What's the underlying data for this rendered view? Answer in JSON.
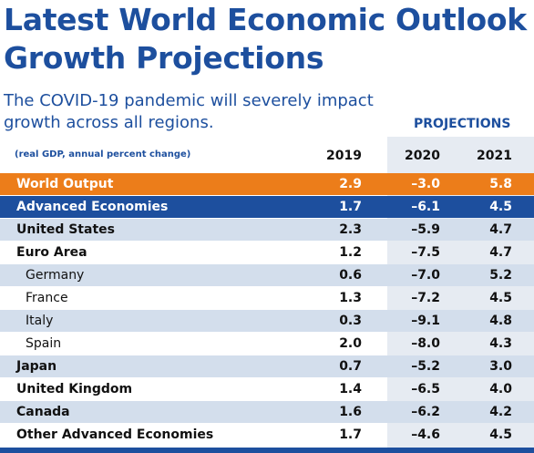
{
  "header": {
    "title_lines": [
      "Latest World Economic Outlook",
      "Growth Projections"
    ],
    "subtitle_lines": [
      "The COVID-19 pandemic will severely impact",
      "growth across all regions."
    ]
  },
  "table": {
    "projections_label": "PROJECTIONS",
    "units": "(real GDP, annual percent change)",
    "columns": [
      "2019",
      "2020",
      "2021"
    ],
    "rows": [
      [
        "World Output",
        "2.9",
        "–3.0",
        "5.8"
      ],
      [
        "Advanced Economies",
        "1.7",
        "–6.1",
        "4.5"
      ],
      [
        "United States",
        "2.3",
        "–5.9",
        "4.7"
      ],
      [
        "Euro Area",
        "1.2",
        "–7.5",
        "4.7"
      ],
      [
        "Germany",
        "0.6",
        "–7.0",
        "5.2"
      ],
      [
        "France",
        "1.3",
        "–7.2",
        "4.5"
      ],
      [
        "Italy",
        "0.3",
        "–9.1",
        "4.8"
      ],
      [
        "Spain",
        "2.0",
        "–8.0",
        "4.3"
      ],
      [
        "Japan",
        "0.7",
        "–5.2",
        "3.0"
      ],
      [
        "United Kingdom",
        "1.4",
        "–6.5",
        "4.0"
      ],
      [
        "Canada",
        "1.6",
        "–6.2",
        "4.2"
      ],
      [
        "Other Advanced Economies",
        "1.7",
        "–4.6",
        "4.5"
      ]
    ]
  }
}
